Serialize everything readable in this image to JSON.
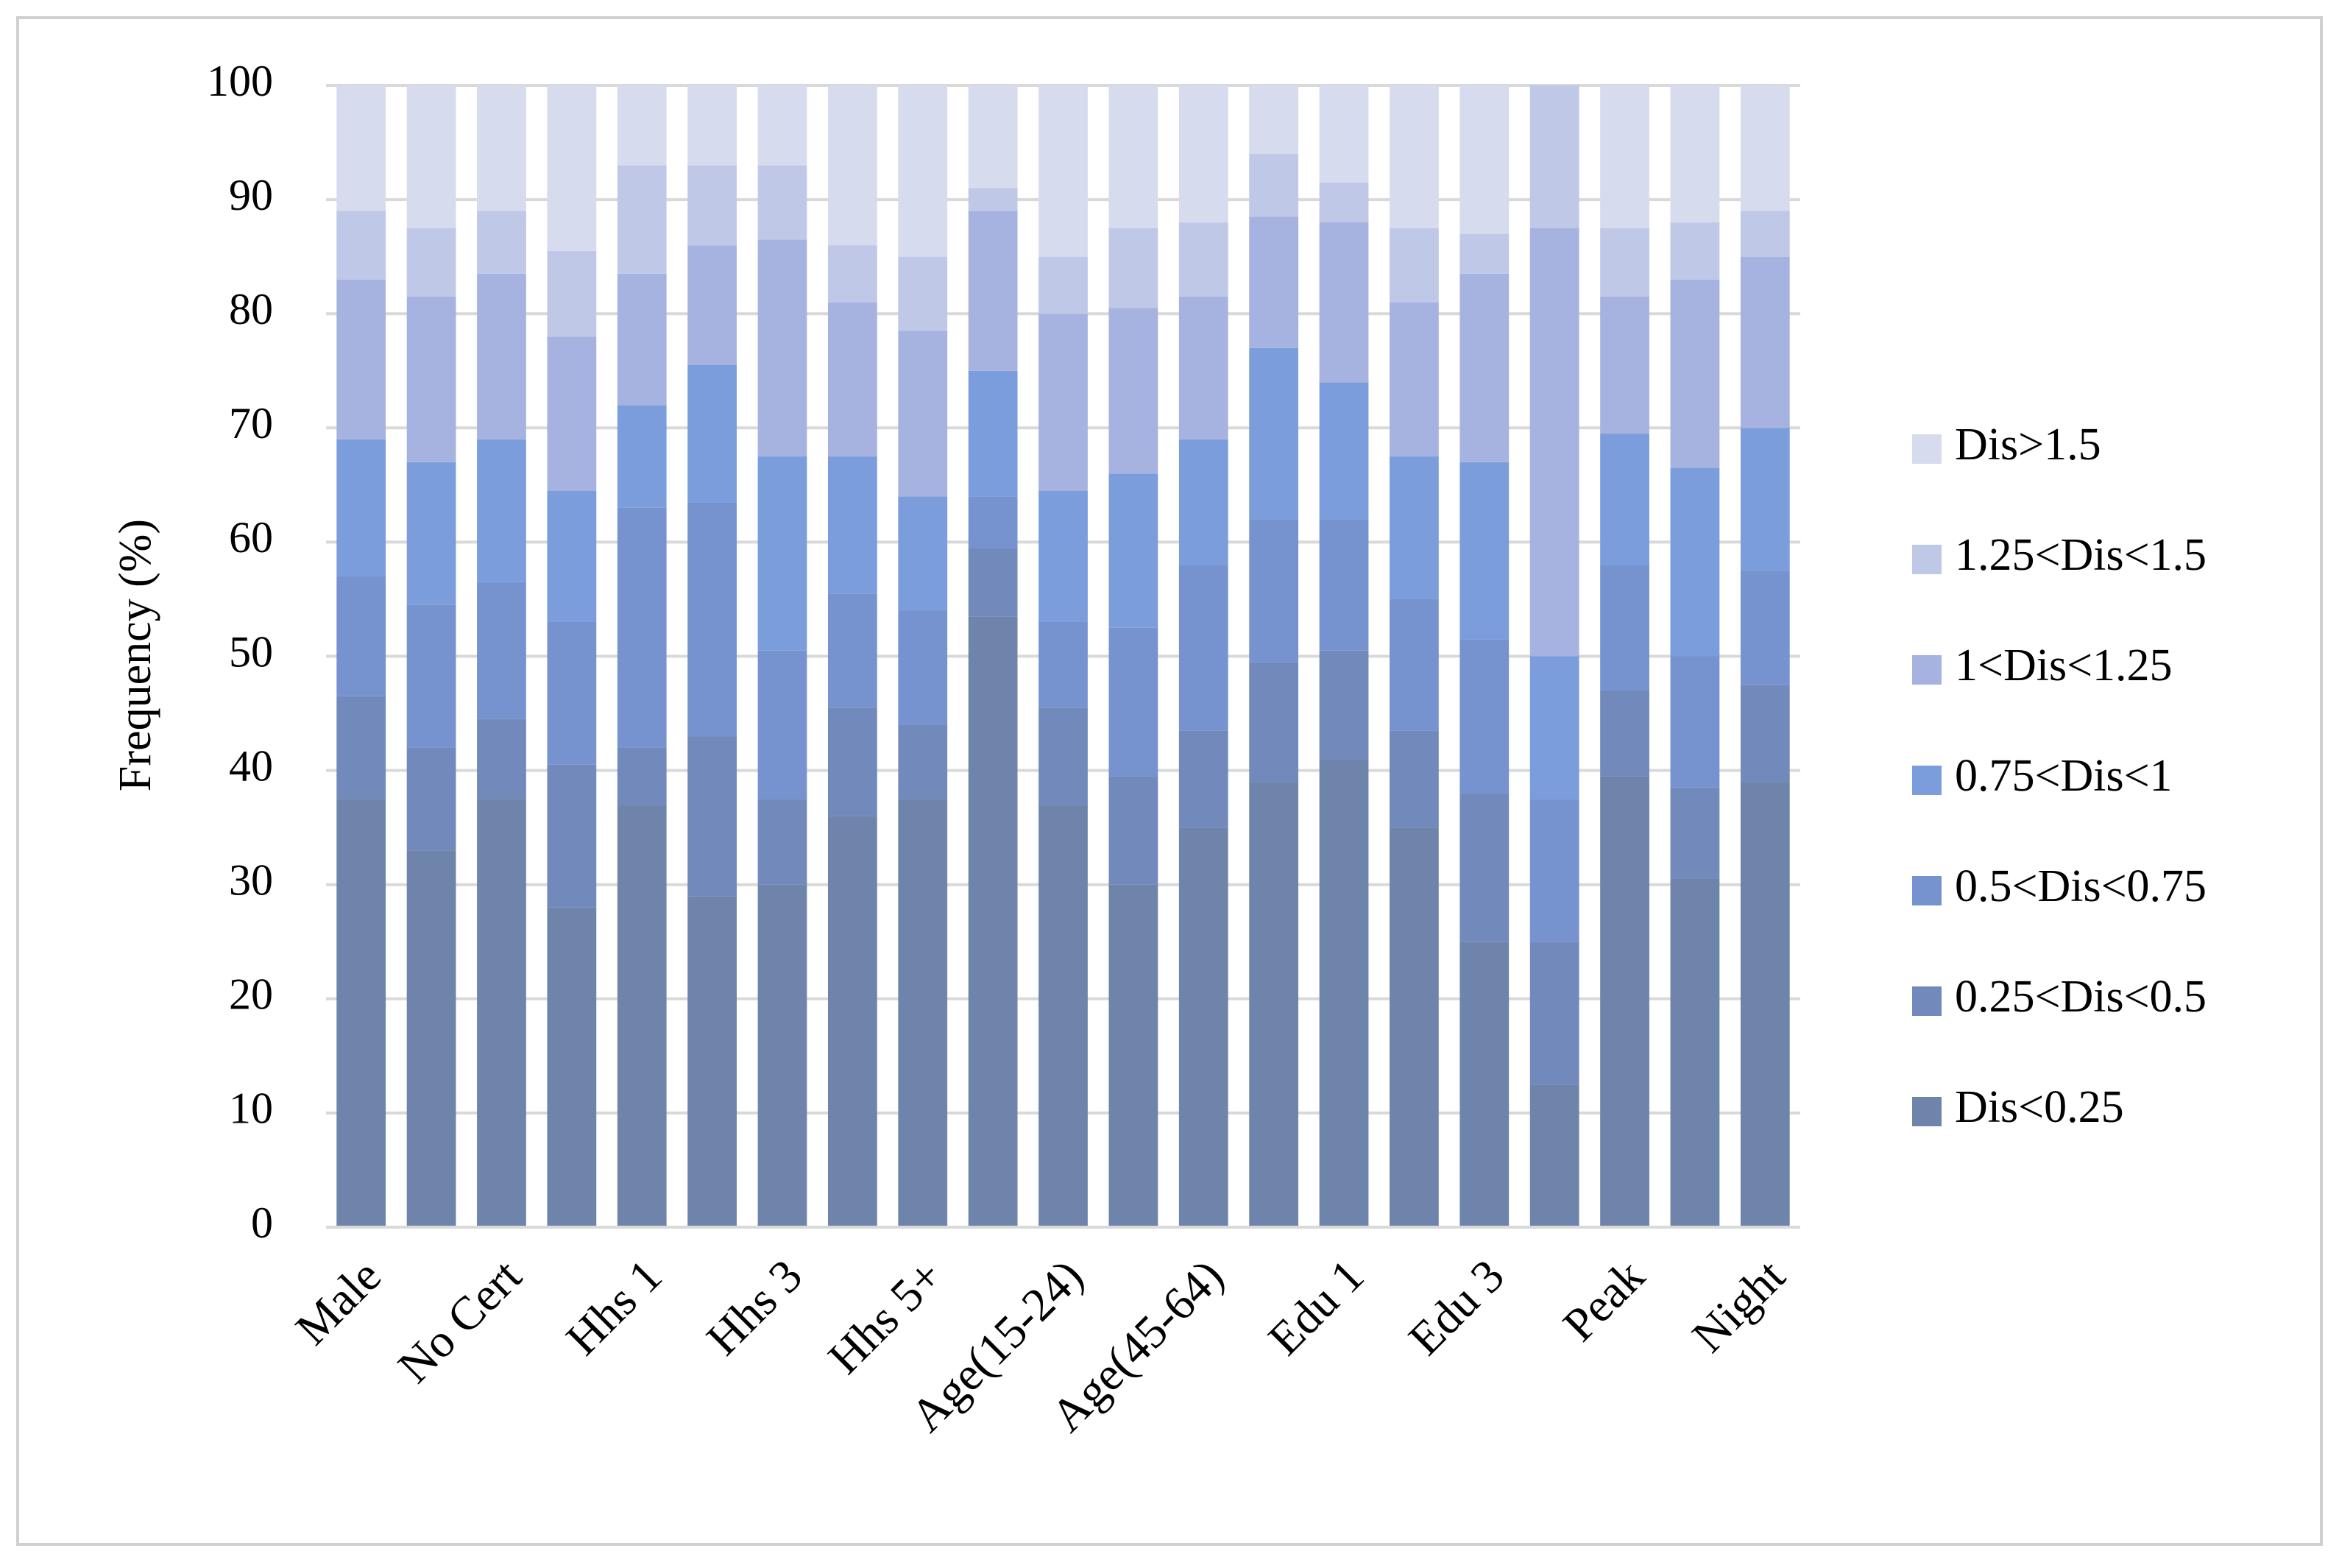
{
  "chart_data": {
    "type": "stacked_bar",
    "y_label": "Frequency (%)",
    "categories": [
      "Male",
      null,
      "No Cert",
      null,
      "Hhs 1",
      null,
      "Hhs  3",
      null,
      "Hhs 5+",
      null,
      "Age(15-24)",
      null,
      "Age(45-64)",
      null,
      "Edu 1",
      null,
      "Edu 3",
      null,
      "Peak",
      null,
      "Night"
    ],
    "series": [
      {
        "name": "Dis<0.25",
        "color": "#6f84ab",
        "values": [
          37.5,
          33,
          37.5,
          28,
          37,
          29,
          30,
          36,
          37.5,
          53.5,
          37,
          30,
          35,
          39,
          41,
          35,
          25,
          12.5,
          39.5,
          30.5,
          39
        ]
      },
      {
        "name": "0.25<Dis<0.5",
        "color": "#7289bb",
        "values": [
          9,
          9,
          7,
          12.5,
          5,
          14,
          7.5,
          9.5,
          6.5,
          6,
          8.5,
          9.5,
          8.5,
          10.5,
          9.5,
          8.5,
          13,
          12.5,
          7.5,
          8,
          8.5
        ]
      },
      {
        "name": "0.5<Dis<0.75",
        "color": "#7693cf",
        "values": [
          10.5,
          12.5,
          12,
          12.5,
          21,
          20.5,
          13,
          10,
          10,
          4.5,
          7.5,
          13,
          14.5,
          12.5,
          11.5,
          11.5,
          13.5,
          12.5,
          11,
          11.5,
          10
        ]
      },
      {
        "name": "0.75<Dis<1",
        "color": "#7b9ddb",
        "values": [
          12,
          12.5,
          12.5,
          11.5,
          9,
          12,
          17,
          12,
          10,
          11,
          11.5,
          13.5,
          11,
          15,
          12,
          12.5,
          15.5,
          12.5,
          11.5,
          16.5,
          12.5
        ]
      },
      {
        "name": "1<Dis<1.25",
        "color": "#a6b3e0",
        "values": [
          14,
          14.5,
          14.5,
          13.5,
          11.5,
          10.5,
          19,
          13.5,
          14.5,
          14,
          15.5,
          14.5,
          12.5,
          11.5,
          14,
          13.5,
          16.5,
          37.5,
          12,
          16.5,
          15
        ]
      },
      {
        "name": "1.25<Dis<1.5",
        "color": "#bfc8e6",
        "values": [
          6,
          6,
          5.5,
          7.5,
          9.5,
          7,
          6.5,
          5,
          6.5,
          2,
          5,
          7,
          6.5,
          5.5,
          3.5,
          6.5,
          3.5,
          12.5,
          6,
          5,
          4
        ]
      },
      {
        "name": "Dis>1.5",
        "color": "#d6dbee",
        "values": [
          11,
          12.5,
          11,
          14.5,
          7,
          7,
          7,
          14,
          15,
          9,
          15,
          12.5,
          12,
          6,
          8.5,
          12.5,
          13,
          0,
          12.5,
          12,
          11
        ]
      }
    ],
    "ylim": [
      0,
      100
    ],
    "yticks": [
      0,
      10,
      20,
      30,
      40,
      50,
      60,
      70,
      80,
      90,
      100
    ],
    "grid": true,
    "legend": "right"
  }
}
